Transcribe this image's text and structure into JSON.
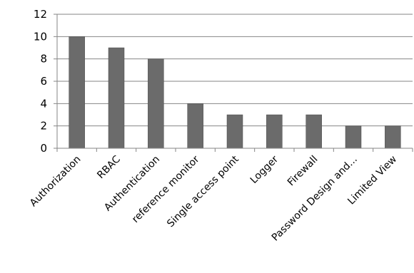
{
  "chart_data": {
    "type": "bar",
    "title": "",
    "xlabel": "",
    "ylabel": "",
    "categories": [
      "Authorization",
      "RBAC",
      "Authentication",
      "reference monitor",
      "Single access point",
      "Logger",
      "Firewall",
      "Password Design and...",
      "Limited View"
    ],
    "values": [
      10,
      9,
      8,
      4,
      3,
      3,
      3,
      2,
      2
    ],
    "ylim": [
      0,
      12
    ],
    "yticks": [
      0,
      2,
      4,
      6,
      8,
      10,
      12
    ],
    "grid": true,
    "legend": "none",
    "bar_color": "#6b6b6b"
  }
}
